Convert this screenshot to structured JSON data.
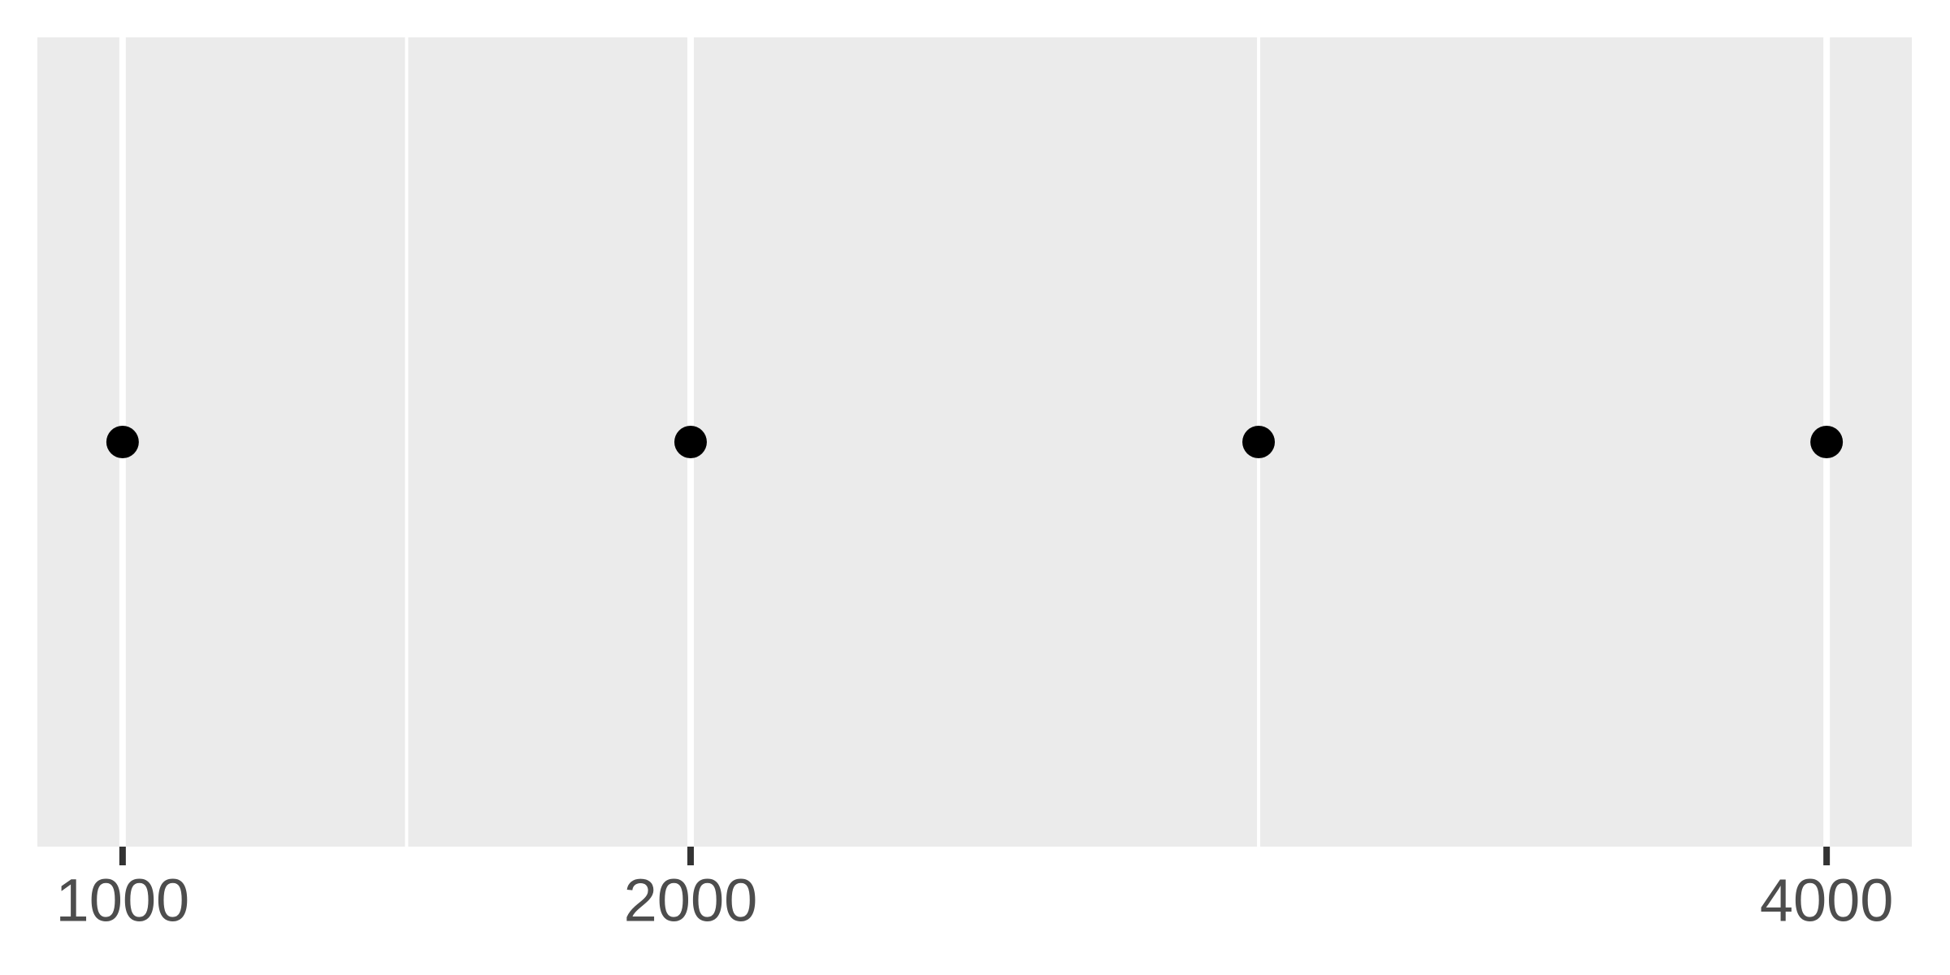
{
  "chart_data": {
    "type": "scatter",
    "x": [
      1000,
      2000,
      3000,
      4000
    ],
    "color": "#000000",
    "xlim": [
      850,
      4150
    ],
    "xticks": [
      1000,
      2000,
      4000
    ],
    "xminor": [
      1500,
      3000
    ],
    "grid": true
  }
}
